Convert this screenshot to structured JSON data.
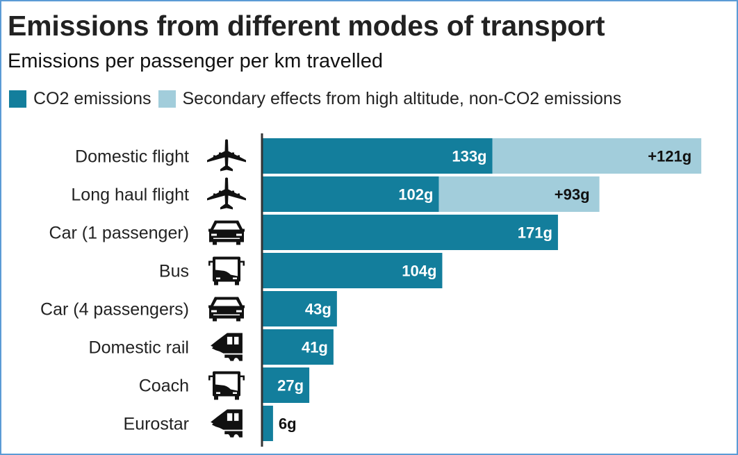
{
  "chart_data": {
    "type": "bar",
    "orientation": "horizontal",
    "stacked": true,
    "title": "Emissions from different modes of transport",
    "subtitle": "Emissions per passenger per km travelled",
    "unit": "g",
    "xlim": [
      0,
      260
    ],
    "grid": false,
    "legend_position": "top-left",
    "categories": [
      "Domestic flight",
      "Long haul flight",
      "Car (1 passenger)",
      "Bus",
      "Car (4 passengers)",
      "Domestic rail",
      "Coach",
      "Eurostar"
    ],
    "icons": [
      "airplane-icon",
      "airplane-icon",
      "car-icon",
      "bus-icon",
      "car-icon",
      "train-icon",
      "bus-icon",
      "train-icon"
    ],
    "series": [
      {
        "name": "CO2 emissions",
        "color": "#137e9c",
        "values": [
          133,
          102,
          171,
          104,
          43,
          41,
          27,
          6
        ],
        "labels": [
          "133g",
          "102g",
          "171g",
          "104g",
          "43g",
          "41g",
          "27g",
          "6g"
        ]
      },
      {
        "name": "Secondary effects from high altitude, non-CO2 emissions",
        "color": "#a2cddb",
        "values": [
          121,
          93,
          0,
          0,
          0,
          0,
          0,
          0
        ],
        "labels": [
          "+121g",
          "+93g",
          "",
          "",
          "",
          "",
          "",
          ""
        ]
      }
    ]
  },
  "legend": [
    {
      "label": "CO2 emissions",
      "color": "#137e9c"
    },
    {
      "label": "Secondary effects from high altitude, non-CO2 emissions",
      "color": "#a2cddb"
    }
  ],
  "colors": {
    "frame": "#5b9bd5",
    "axis": "#333333"
  }
}
